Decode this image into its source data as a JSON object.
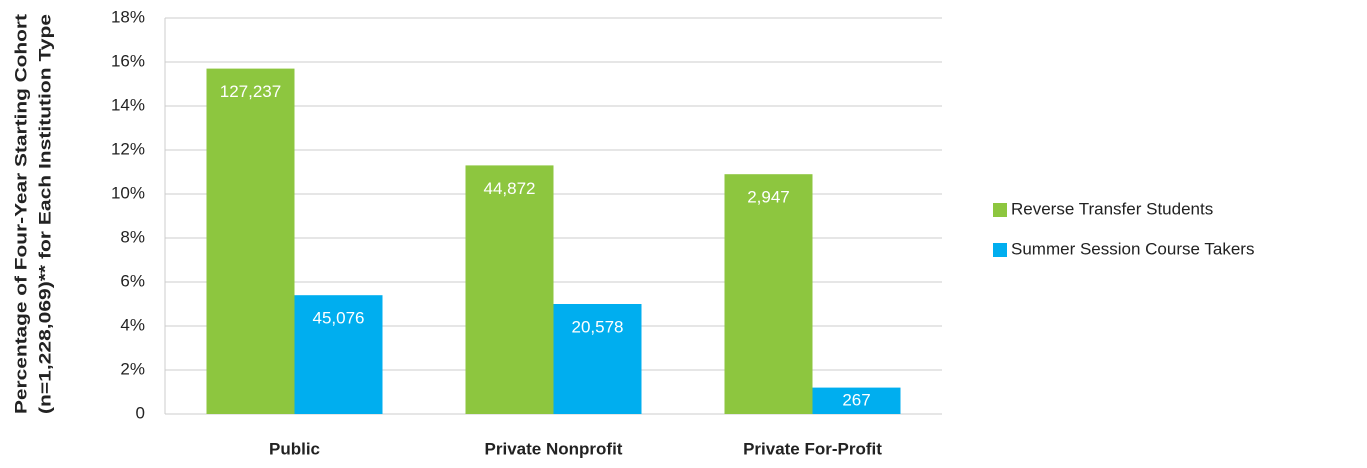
{
  "chart_data": {
    "type": "bar",
    "ylabel": [
      "Percentage of Four-Year Starting Cohort",
      "(n=1,228,069)** for Each Institution Type"
    ],
    "categories": [
      "Public",
      "Private Nonprofit",
      "Private For-Profit"
    ],
    "series": [
      {
        "name": "Reverse Transfer Students",
        "color": "#8dc63f",
        "values": [
          15.7,
          11.3,
          10.9
        ],
        "labels": [
          "127,237",
          "44,872",
          "2,947"
        ]
      },
      {
        "name": "Summer Session Course Takers",
        "color": "#00aeef",
        "values": [
          5.4,
          5.0,
          1.2
        ],
        "labels": [
          "45,076",
          "20,578",
          "267"
        ]
      }
    ],
    "ylim": [
      0,
      18
    ],
    "yticks": [
      0,
      {
        "value": 2,
        "label": "2%"
      },
      {
        "value": 4,
        "label": "4%"
      },
      {
        "value": 6,
        "label": "6%"
      },
      {
        "value": 8,
        "label": "8%"
      },
      {
        "value": 10,
        "label": "10%"
      },
      {
        "value": 12,
        "label": "12%"
      },
      {
        "value": 14,
        "label": "14%"
      },
      {
        "value": 16,
        "label": "16%"
      },
      {
        "value": 18,
        "label": "18%"
      }
    ],
    "grid": true,
    "legend": "right"
  }
}
